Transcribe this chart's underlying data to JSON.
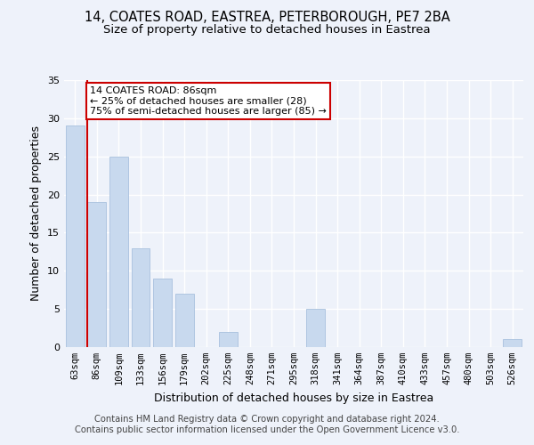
{
  "title_line1": "14, COATES ROAD, EASTREA, PETERBOROUGH, PE7 2BA",
  "title_line2": "Size of property relative to detached houses in Eastrea",
  "xlabel": "Distribution of detached houses by size in Eastrea",
  "ylabel": "Number of detached properties",
  "categories": [
    "63sqm",
    "86sqm",
    "109sqm",
    "133sqm",
    "156sqm",
    "179sqm",
    "202sqm",
    "225sqm",
    "248sqm",
    "271sqm",
    "295sqm",
    "318sqm",
    "341sqm",
    "364sqm",
    "387sqm",
    "410sqm",
    "433sqm",
    "457sqm",
    "480sqm",
    "503sqm",
    "526sqm"
  ],
  "values": [
    29,
    19,
    25,
    13,
    9,
    7,
    0,
    2,
    0,
    0,
    0,
    5,
    0,
    0,
    0,
    0,
    0,
    0,
    0,
    0,
    1
  ],
  "bar_color": "#c8d9ee",
  "bar_edge_color": "#a8c0de",
  "marker_index": 1,
  "marker_color": "#cc0000",
  "annotation_text": "14 COATES ROAD: 86sqm\n← 25% of detached houses are smaller (28)\n75% of semi-detached houses are larger (85) →",
  "annotation_box_color": "#ffffff",
  "annotation_box_edge_color": "#cc0000",
  "ylim": [
    0,
    35
  ],
  "yticks": [
    0,
    5,
    10,
    15,
    20,
    25,
    30,
    35
  ],
  "footer_line1": "Contains HM Land Registry data © Crown copyright and database right 2024.",
  "footer_line2": "Contains public sector information licensed under the Open Government Licence v3.0.",
  "bg_color": "#eef2fa",
  "grid_color": "#ffffff",
  "title_fontsize": 10.5,
  "subtitle_fontsize": 9.5,
  "label_fontsize": 9,
  "tick_fontsize": 8,
  "footer_fontsize": 7.2,
  "annotation_fontsize": 8
}
